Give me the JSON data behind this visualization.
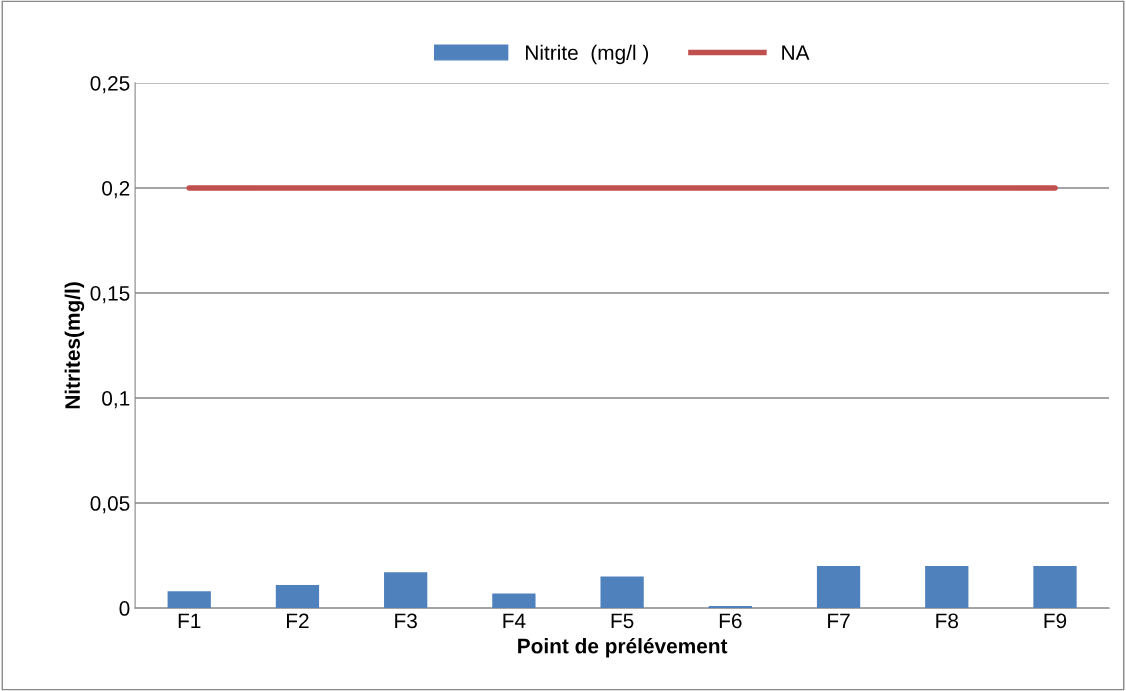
{
  "chart_data": {
    "type": "bar",
    "xlabel": "Point de prélévement",
    "ylabel": "Nitrites(mg/l)",
    "categories": [
      "F1",
      "F2",
      "F3",
      "F4",
      "F5",
      "F6",
      "F7",
      "F8",
      "F9"
    ],
    "series": [
      {
        "name": "Nitrite  (mg/l )",
        "color": "#4f81bd",
        "values": [
          0.008,
          0.011,
          0.017,
          0.007,
          0.015,
          0.001,
          0.02,
          0.02,
          0.02
        ]
      },
      {
        "name": "NA",
        "type": "line",
        "color": "#c0504d",
        "values": [
          0.2,
          0.2,
          0.2,
          0.2,
          0.2,
          0.2,
          0.2,
          0.2,
          0.2
        ]
      }
    ],
    "ylim": [
      0,
      0.25
    ],
    "yticks": [
      {
        "value": 0,
        "label": "0"
      },
      {
        "value": 0.05,
        "label": "0,05"
      },
      {
        "value": 0.1,
        "label": "0,1"
      },
      {
        "value": 0.15,
        "label": "0,15"
      },
      {
        "value": 0.2,
        "label": "0,2"
      },
      {
        "value": 0.25,
        "label": "0,25"
      }
    ],
    "grid": "y",
    "legend": "top"
  }
}
